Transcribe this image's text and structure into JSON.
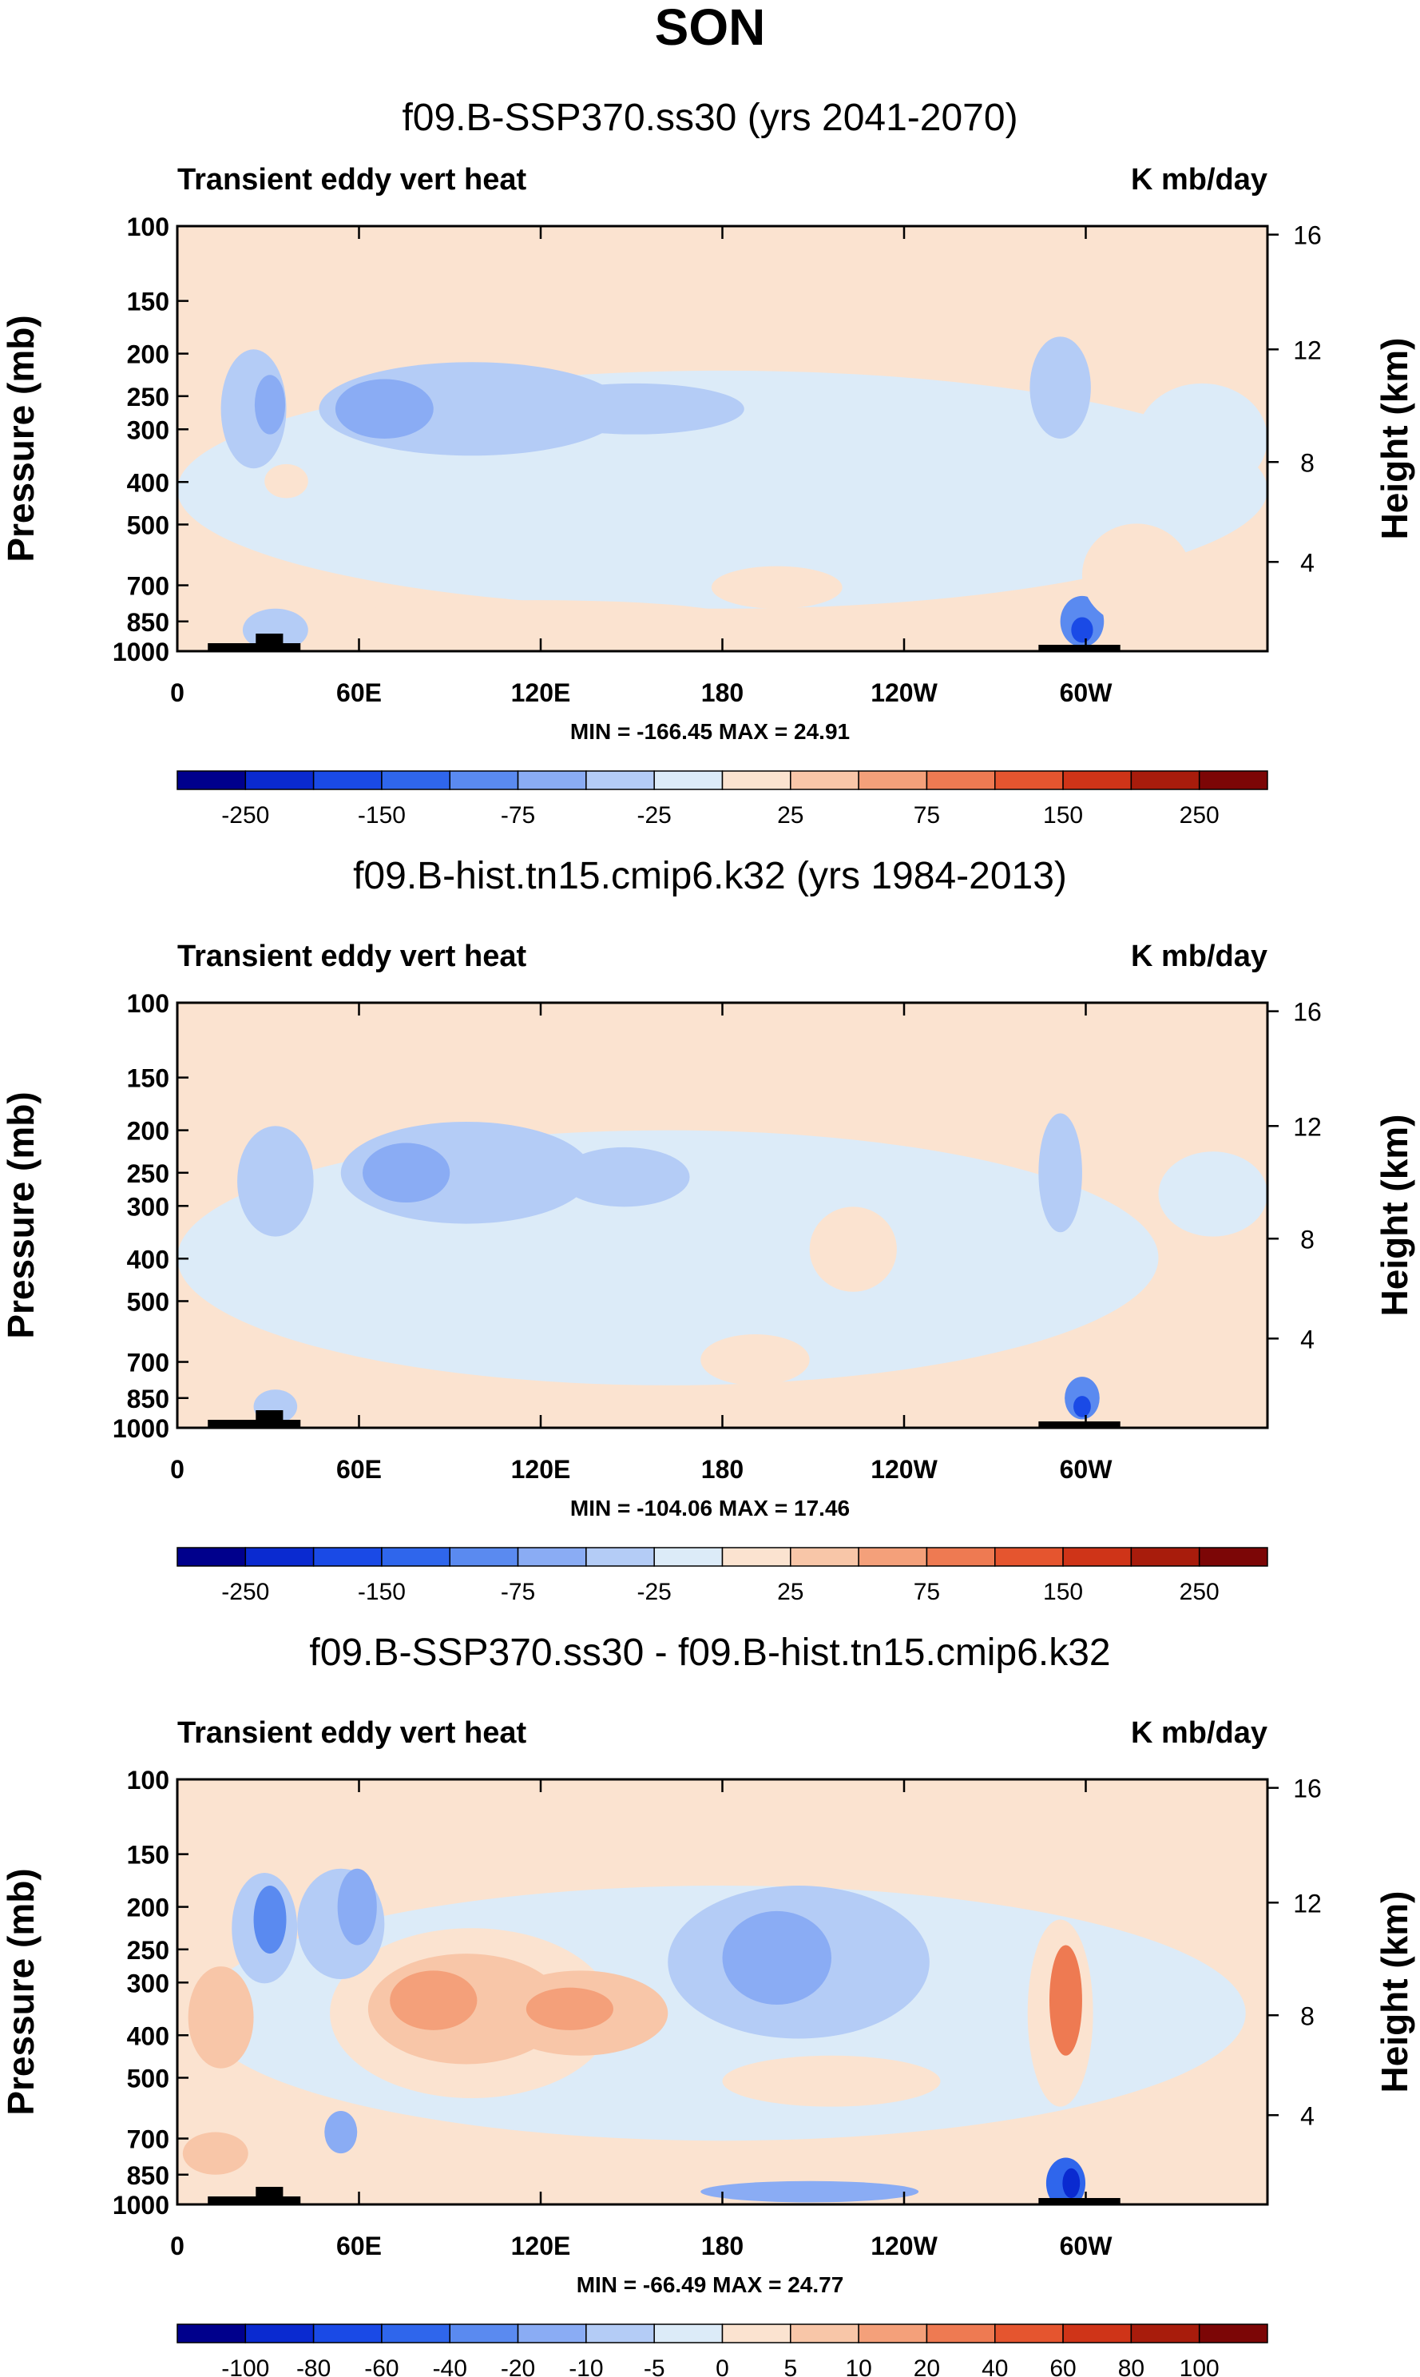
{
  "figure": {
    "title": "SON"
  },
  "colors": {
    "background_pos": "#fbe3d0",
    "background_neg": "#dcebf8",
    "land": "#000000"
  },
  "chart_data": [
    {
      "type": "contour",
      "title": "f09.B-SSP370.ss30 (yrs 2041-2070)",
      "left_label": "Transient eddy vert heat",
      "right_label": "K mb/day",
      "ylabel": "Pressure (mb)",
      "ylabel_right": "Height (km)",
      "y_ticks": [
        "100",
        "150",
        "200",
        "250",
        "300",
        "400",
        "500",
        "700",
        "850",
        "1000"
      ],
      "y_ticks_right": [
        "16",
        "12",
        "8",
        "4"
      ],
      "x_ticks": [
        "0",
        "60E",
        "120E",
        "180",
        "120W",
        "60W"
      ],
      "stats": "MIN = -166.45  MAX =  24.91",
      "colorbar_labels": [
        "-250",
        "-150",
        "-75",
        "-25",
        "25",
        "75",
        "150",
        "250"
      ],
      "colorbar_colors": [
        "#00008c",
        "#0a2ad0",
        "#1a4ae6",
        "#2f66ec",
        "#5a8af0",
        "#8aacf4",
        "#b4ccf6",
        "#dcebf8",
        "#fbe3d0",
        "#f8c6a8",
        "#f4a07a",
        "#ee7a52",
        "#e5552f",
        "#cf3418",
        "#a81c0c",
        "#7c0606"
      ]
    },
    {
      "type": "contour",
      "title": "f09.B-hist.tn15.cmip6.k32 (yrs 1984-2013)",
      "left_label": "Transient eddy vert heat",
      "right_label": "K mb/day",
      "ylabel": "Pressure (mb)",
      "ylabel_right": "Height (km)",
      "y_ticks": [
        "100",
        "150",
        "200",
        "250",
        "300",
        "400",
        "500",
        "700",
        "850",
        "1000"
      ],
      "y_ticks_right": [
        "16",
        "12",
        "8",
        "4"
      ],
      "x_ticks": [
        "0",
        "60E",
        "120E",
        "180",
        "120W",
        "60W"
      ],
      "stats": "MIN = -104.06  MAX =  17.46",
      "colorbar_labels": [
        "-250",
        "-150",
        "-75",
        "-25",
        "25",
        "75",
        "150",
        "250"
      ],
      "colorbar_colors": [
        "#00008c",
        "#0a2ad0",
        "#1a4ae6",
        "#2f66ec",
        "#5a8af0",
        "#8aacf4",
        "#b4ccf6",
        "#dcebf8",
        "#fbe3d0",
        "#f8c6a8",
        "#f4a07a",
        "#ee7a52",
        "#e5552f",
        "#cf3418",
        "#a81c0c",
        "#7c0606"
      ]
    },
    {
      "type": "contour",
      "title": "f09.B-SSP370.ss30 - f09.B-hist.tn15.cmip6.k32",
      "left_label": "Transient eddy vert heat",
      "right_label": "K mb/day",
      "ylabel": "Pressure (mb)",
      "ylabel_right": "Height (km)",
      "y_ticks": [
        "100",
        "150",
        "200",
        "250",
        "300",
        "400",
        "500",
        "700",
        "850",
        "1000"
      ],
      "y_ticks_right": [
        "16",
        "12",
        "8",
        "4"
      ],
      "x_ticks": [
        "0",
        "60E",
        "120E",
        "180",
        "120W",
        "60W"
      ],
      "stats": "MIN = -66.49  MAX =  24.77",
      "colorbar_labels": [
        "-100",
        "-80",
        "-60",
        "-40",
        "-20",
        "-10",
        "-5",
        "0",
        "5",
        "10",
        "20",
        "40",
        "60",
        "80",
        "100"
      ],
      "colorbar_colors": [
        "#00008c",
        "#0a2ad0",
        "#1a4ae6",
        "#2f66ec",
        "#5a8af0",
        "#8aacf4",
        "#b4ccf6",
        "#dcebf8",
        "#fbe3d0",
        "#f8c6a8",
        "#f4a07a",
        "#ee7a52",
        "#e5552f",
        "#cf3418",
        "#a81c0c",
        "#7c0606"
      ]
    }
  ]
}
